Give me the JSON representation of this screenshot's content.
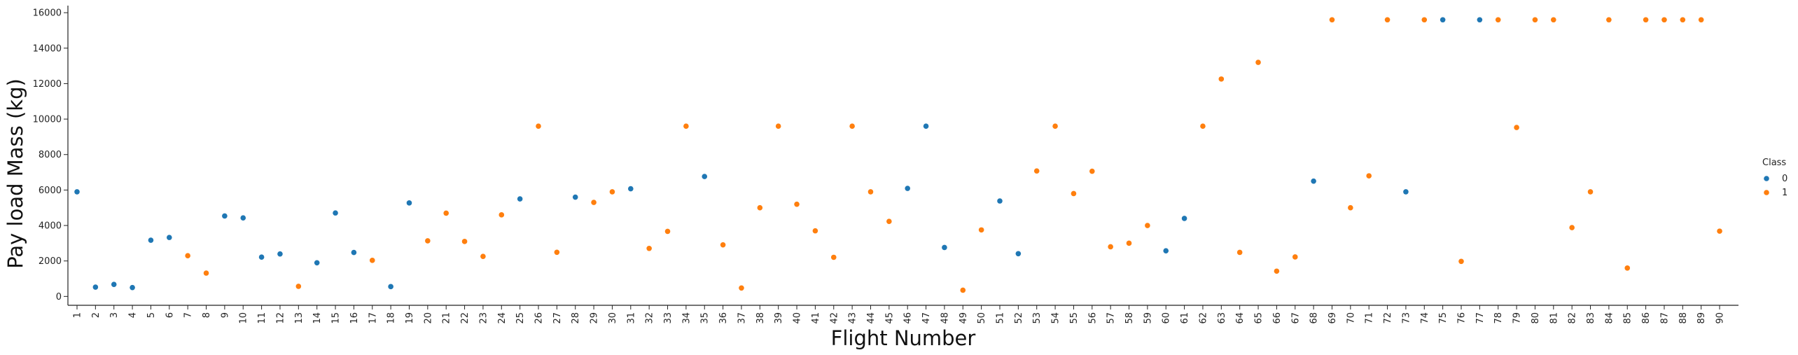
{
  "chart_data": {
    "type": "scatter",
    "title": "",
    "xlabel": "Flight Number",
    "ylabel": "Pay load Mass (kg)",
    "ylim": [
      -500,
      16400
    ],
    "yticks": [
      0,
      2000,
      4000,
      6000,
      8000,
      10000,
      12000,
      14000,
      16000
    ],
    "grid": false,
    "legend": {
      "title": "Class",
      "placement": "right",
      "entries": [
        {
          "label": "0",
          "color": "#1f77b4"
        },
        {
          "label": "1",
          "color": "#ff7f0e"
        }
      ]
    },
    "categories": [
      "1",
      "2",
      "3",
      "4",
      "5",
      "6",
      "7",
      "8",
      "9",
      "10",
      "11",
      "12",
      "13",
      "14",
      "15",
      "16",
      "17",
      "18",
      "19",
      "20",
      "21",
      "22",
      "23",
      "24",
      "25",
      "26",
      "27",
      "28",
      "29",
      "30",
      "31",
      "32",
      "33",
      "34",
      "35",
      "36",
      "37",
      "38",
      "39",
      "40",
      "41",
      "42",
      "43",
      "44",
      "45",
      "46",
      "47",
      "48",
      "49",
      "50",
      "51",
      "52",
      "53",
      "54",
      "55",
      "56",
      "57",
      "58",
      "59",
      "60",
      "61",
      "62",
      "63",
      "64",
      "65",
      "66",
      "67",
      "68",
      "69",
      "70",
      "71",
      "72",
      "73",
      "74",
      "75",
      "76",
      "77",
      "78",
      "79",
      "80",
      "81",
      "82",
      "83",
      "84",
      "85",
      "86",
      "87",
      "88",
      "89",
      "90"
    ],
    "y": [
      5900,
      525,
      677,
      500,
      3170,
      3325,
      2296,
      1316,
      4535,
      4428,
      2216,
      2395,
      570,
      1898,
      4707,
      2477,
      2034,
      553,
      5271,
      3136,
      4696,
      3100,
      2257,
      4600,
      5500,
      9600,
      2490,
      5600,
      5300,
      5900,
      6070,
      2708,
      3669,
      9600,
      6761,
      2910,
      475,
      5000,
      9600,
      5200,
      3700,
      2205,
      9600,
      5900,
      4230,
      6092,
      9600,
      2760,
      350,
      3750,
      5383,
      2410,
      7076,
      9600,
      5800,
      7060,
      2800,
      3000,
      4000,
      2573,
      4400,
      9600,
      12259,
      2482,
      13200,
      1425,
      2227,
      6500,
      15600,
      5000,
      6800,
      15600,
      5900,
      15600,
      15600,
      1977,
      15600,
      15600,
      9525,
      15600,
      15600,
      3880,
      5900,
      15600,
      1600,
      15600,
      15600,
      15600,
      15600,
      3681
    ],
    "class": [
      0,
      0,
      0,
      0,
      0,
      0,
      1,
      1,
      0,
      0,
      0,
      0,
      1,
      0,
      0,
      0,
      1,
      0,
      0,
      1,
      1,
      1,
      1,
      1,
      0,
      1,
      1,
      0,
      1,
      1,
      0,
      1,
      1,
      1,
      0,
      1,
      1,
      1,
      1,
      1,
      1,
      1,
      1,
      1,
      1,
      0,
      0,
      0,
      1,
      1,
      0,
      0,
      1,
      1,
      1,
      1,
      1,
      1,
      1,
      0,
      0,
      1,
      1,
      1,
      1,
      1,
      1,
      0,
      1,
      1,
      1,
      1,
      0,
      1,
      0,
      1,
      0,
      1,
      1,
      1,
      1,
      1,
      1,
      1,
      1,
      1,
      1,
      1,
      1,
      1
    ]
  }
}
